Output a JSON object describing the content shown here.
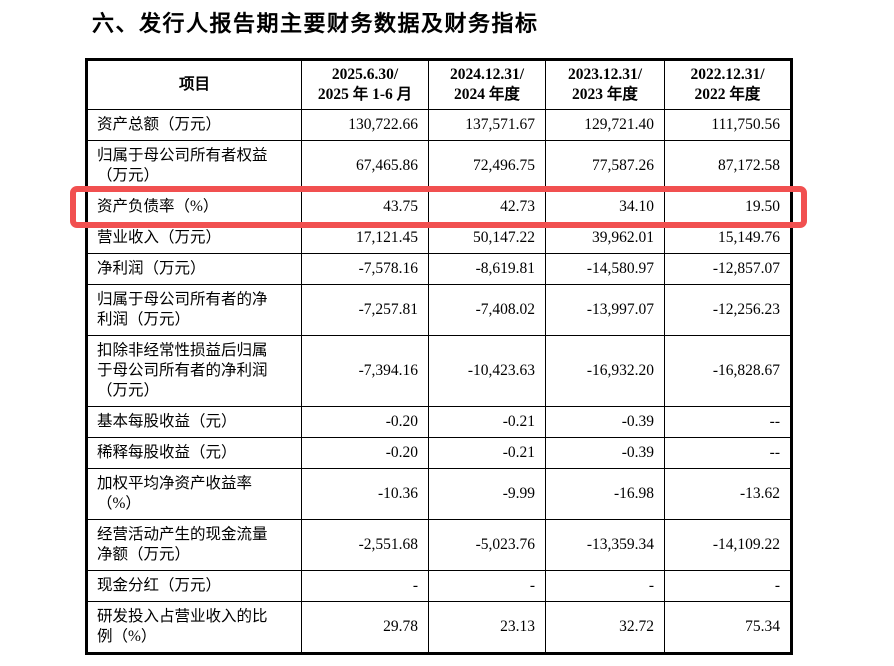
{
  "title": "六、发行人报告期主要财务数据及财务指标",
  "colors": {
    "highlight": "#f15050",
    "table_border": "#000000",
    "text": "#000000"
  },
  "table": {
    "columns": {
      "item": "项目",
      "periods": [
        {
          "line1": "2025.6.30/",
          "line2": "2025 年 1-6 月"
        },
        {
          "line1": "2024.12.31/",
          "line2": "2024 年度"
        },
        {
          "line1": "2023.12.31/",
          "line2": "2023 年度"
        },
        {
          "line1": "2022.12.31/",
          "line2": "2022 年度"
        }
      ]
    },
    "rows": [
      {
        "label": "资产总额（万元）",
        "values": [
          "130,722.66",
          "137,571.67",
          "129,721.40",
          "111,750.56"
        ],
        "highlighted": false
      },
      {
        "label": "归属于母公司所有者权益\n（万元）",
        "values": [
          "67,465.86",
          "72,496.75",
          "77,587.26",
          "87,172.58"
        ],
        "highlighted": false
      },
      {
        "label": "资产负债率（%）",
        "values": [
          "43.75",
          "42.73",
          "34.10",
          "19.50"
        ],
        "highlighted": true
      },
      {
        "label": "营业收入（万元）",
        "values": [
          "17,121.45",
          "50,147.22",
          "39,962.01",
          "15,149.76"
        ],
        "highlighted": false
      },
      {
        "label": "净利润（万元）",
        "values": [
          "-7,578.16",
          "-8,619.81",
          "-14,580.97",
          "-12,857.07"
        ],
        "highlighted": false
      },
      {
        "label": "归属于母公司所有者的净\n利润（万元）",
        "values": [
          "-7,257.81",
          "-7,408.02",
          "-13,997.07",
          "-12,256.23"
        ],
        "highlighted": false
      },
      {
        "label": "扣除非经常性损益后归属\n于母公司所有者的净利润\n（万元）",
        "values": [
          "-7,394.16",
          "-10,423.63",
          "-16,932.20",
          "-16,828.67"
        ],
        "highlighted": false
      },
      {
        "label": "基本每股收益（元）",
        "values": [
          "-0.20",
          "-0.21",
          "-0.39",
          "--"
        ],
        "highlighted": false
      },
      {
        "label": "稀释每股收益（元）",
        "values": [
          "-0.20",
          "-0.21",
          "-0.39",
          "--"
        ],
        "highlighted": false
      },
      {
        "label": "加权平均净资产收益率\n（%）",
        "values": [
          "-10.36",
          "-9.99",
          "-16.98",
          "-13.62"
        ],
        "highlighted": false
      },
      {
        "label": "经营活动产生的现金流量\n净额（万元）",
        "values": [
          "-2,551.68",
          "-5,023.76",
          "-13,359.34",
          "-14,109.22"
        ],
        "highlighted": false
      },
      {
        "label": "现金分红（万元）",
        "values": [
          "-",
          "-",
          "-",
          "-"
        ],
        "highlighted": false
      },
      {
        "label": "研发投入占营业收入的比\n例（%）",
        "values": [
          "29.78",
          "23.13",
          "32.72",
          "75.34"
        ],
        "highlighted": false
      }
    ]
  }
}
